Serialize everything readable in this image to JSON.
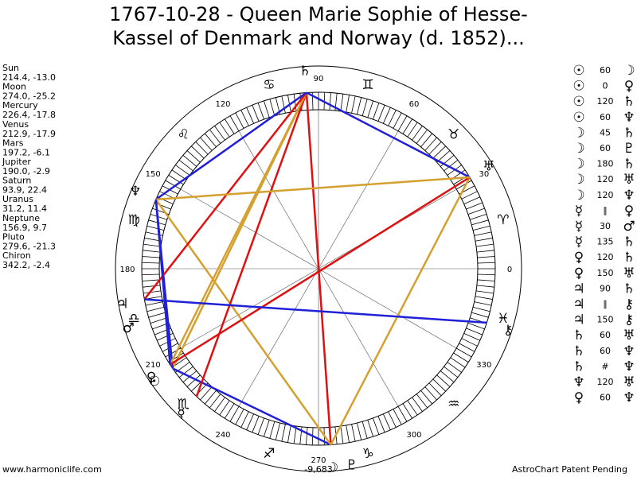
{
  "header": {
    "title_lines": [
      "1767-10-28 - Queen Marie Sophie of Hesse-",
      "Kassel of Denmark and Norway (d. 1852)..."
    ]
  },
  "planets": [
    {
      "name": "Sun",
      "glyph": "☉",
      "position": "214.4, -13.0"
    },
    {
      "name": "Moon",
      "glyph": "☽",
      "position": "274.0, -25.2"
    },
    {
      "name": "Mercury",
      "glyph": "☿",
      "position": "226.4, -17.8"
    },
    {
      "name": "Venus",
      "glyph": "♀",
      "position": "212.9, -17.9"
    },
    {
      "name": "Mars",
      "glyph": "♂",
      "position": "197.2, -6.1"
    },
    {
      "name": "Jupiter",
      "glyph": "♃",
      "position": "190.0, -2.9"
    },
    {
      "name": "Saturn",
      "glyph": "♄",
      "position": "93.9, 22.4"
    },
    {
      "name": "Uranus",
      "glyph": "♅",
      "position": "31.2, 11.4"
    },
    {
      "name": "Neptune",
      "glyph": "♆",
      "position": "156.9, 9.7"
    },
    {
      "name": "Pluto",
      "glyph": "♇",
      "position": "279.6, -21.3"
    },
    {
      "name": "Chiron",
      "glyph": "⚷",
      "position": "342.2, -2.4"
    }
  ],
  "wheel": {
    "degree_labels": [
      0,
      30,
      60,
      90,
      120,
      150,
      180,
      210,
      240,
      270,
      300,
      330
    ],
    "signs": [
      "♈",
      "♉",
      "♊",
      "♋",
      "♌",
      "♍",
      "♎",
      "♏",
      "♐",
      "♑",
      "♒",
      "♓"
    ],
    "readout": "-9,683"
  },
  "aspects": [
    {
      "from": "☉",
      "angle": "60",
      "to": "☽",
      "color": "#2020d8"
    },
    {
      "from": "☉",
      "angle": "0",
      "to": "♀"
    },
    {
      "from": "☉",
      "angle": "120",
      "to": "♄",
      "color": "#d4a030"
    },
    {
      "from": "☉",
      "angle": "60",
      "to": "♆",
      "color": "#2020d8"
    },
    {
      "from": "☽",
      "angle": "45",
      "to": "♄"
    },
    {
      "from": "☽",
      "angle": "60",
      "to": "♇"
    },
    {
      "from": "☽",
      "angle": "180",
      "to": "♄",
      "color": "#e01010"
    },
    {
      "from": "☽",
      "angle": "120",
      "to": "♅",
      "color": "#d4a030"
    },
    {
      "from": "☽",
      "angle": "120",
      "to": "♆",
      "color": "#d4a030"
    },
    {
      "from": "☿",
      "angle": "∥",
      "to": "♀"
    },
    {
      "from": "☿",
      "angle": "30",
      "to": "♂"
    },
    {
      "from": "☿",
      "angle": "135",
      "to": "♄",
      "color": "#e01010"
    },
    {
      "from": "♀",
      "angle": "120",
      "to": "♄",
      "color": "#d4a030"
    },
    {
      "from": "♀",
      "angle": "150",
      "to": "♅",
      "color": "#e01010"
    },
    {
      "from": "♃",
      "angle": "90",
      "to": "♄",
      "color": "#e01010"
    },
    {
      "from": "♃",
      "angle": "∥",
      "to": "⚷"
    },
    {
      "from": "♃",
      "angle": "150",
      "to": "⚷",
      "color": "#2020d8"
    },
    {
      "from": "♄",
      "angle": "60",
      "to": "♅",
      "color": "#2020d8"
    },
    {
      "from": "♄",
      "angle": "60",
      "to": "♆",
      "color": "#2020d8"
    },
    {
      "from": "♄",
      "angle": "#",
      "to": "♆"
    },
    {
      "from": "♆",
      "angle": "120",
      "to": "♅",
      "color": "#d4a030"
    },
    {
      "from": "♀",
      "angle": "60",
      "to": "♆",
      "color": "#2020d8"
    }
  ],
  "footer": {
    "left": "www.harmoniclife.com",
    "right": "AstroChart Patent Pending"
  }
}
